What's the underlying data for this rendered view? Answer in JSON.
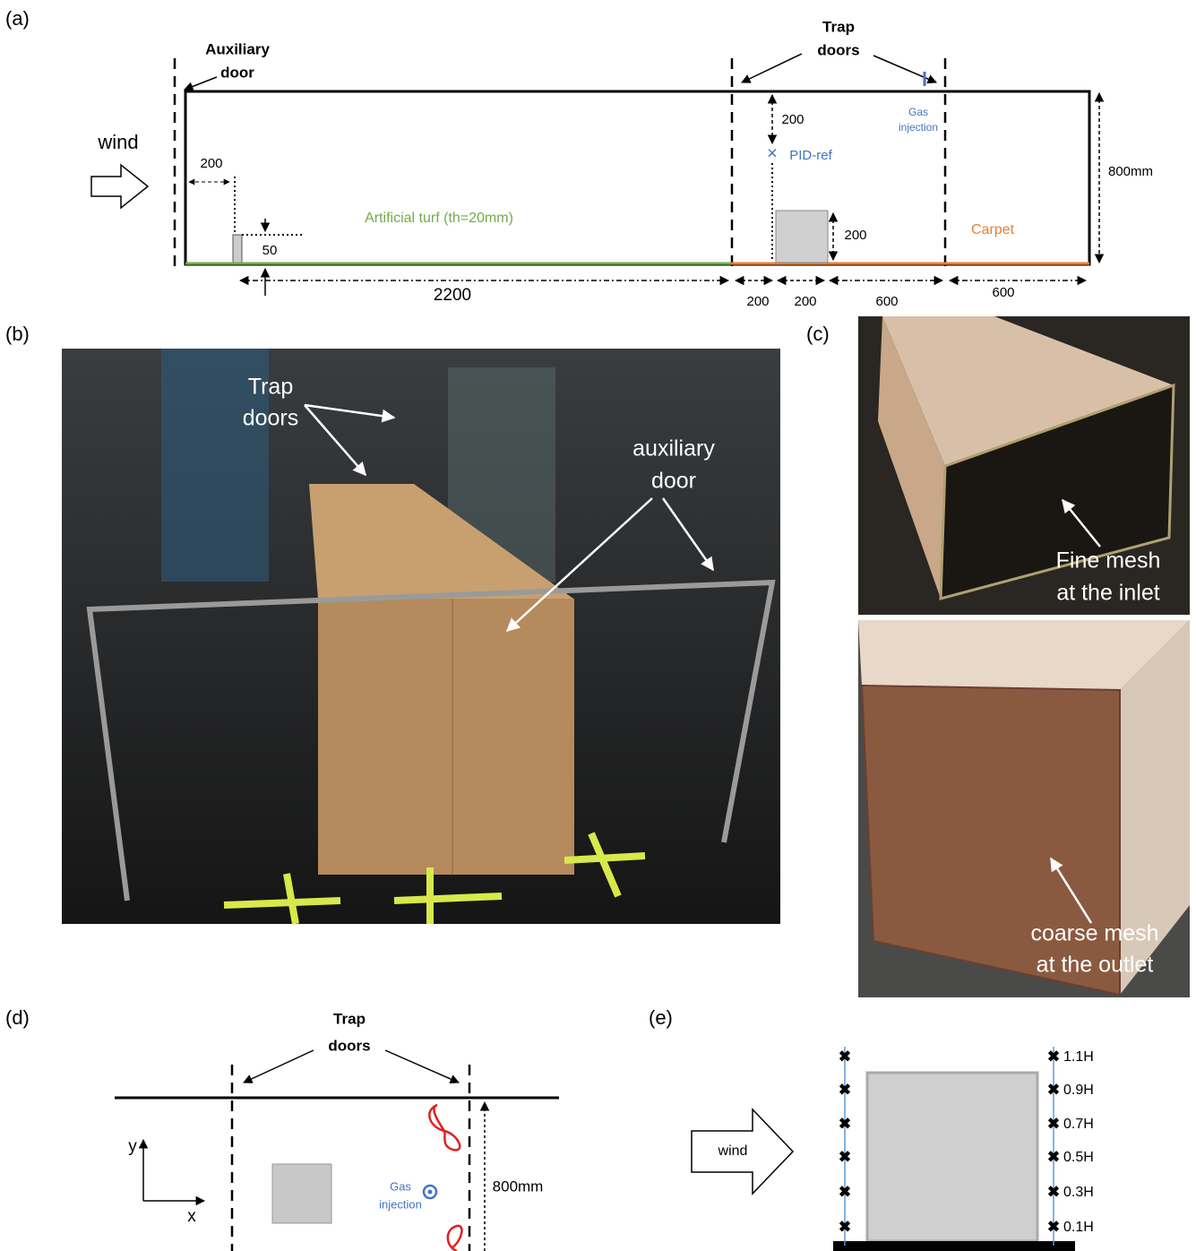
{
  "panel_a": {
    "label": "(a)",
    "auxiliary_door": [
      "Auxiliary",
      "door"
    ],
    "wind": "wind",
    "trap_doors": [
      "Trap",
      "doors"
    ],
    "gas_injection": [
      "Gas",
      "injection"
    ],
    "pid_ref": "PID-ref",
    "pid_height": "200",
    "inlet_offset": "200",
    "step_height": "50",
    "turf": "Artificial turf (th=20mm)",
    "block_height": "200",
    "carpet": "Carpet",
    "tunnel_height": "800mm",
    "bottom_dims": [
      "2200",
      "200",
      "200",
      "600",
      "600"
    ]
  },
  "panel_b": {
    "label": "(b)",
    "trap_doors": [
      "Trap",
      "doors"
    ],
    "auxiliary_door": [
      "auxiliary",
      "door"
    ]
  },
  "panel_c": {
    "label": "(c)",
    "inlet": [
      "Fine mesh",
      "at the inlet"
    ],
    "outlet": [
      "coarse mesh",
      "at the outlet"
    ]
  },
  "panel_d": {
    "label": "(d)",
    "trap_doors": [
      "Trap",
      "doors"
    ],
    "y_axis": "y",
    "x_axis": "x",
    "gas_injection": [
      "Gas",
      "injection"
    ],
    "width": "800mm"
  },
  "panel_e": {
    "label": "(e)",
    "wind": "wind",
    "heights": [
      "1.1H",
      "0.9H",
      "0.7H",
      "0.5H",
      "0.3H",
      "0.1H"
    ]
  }
}
